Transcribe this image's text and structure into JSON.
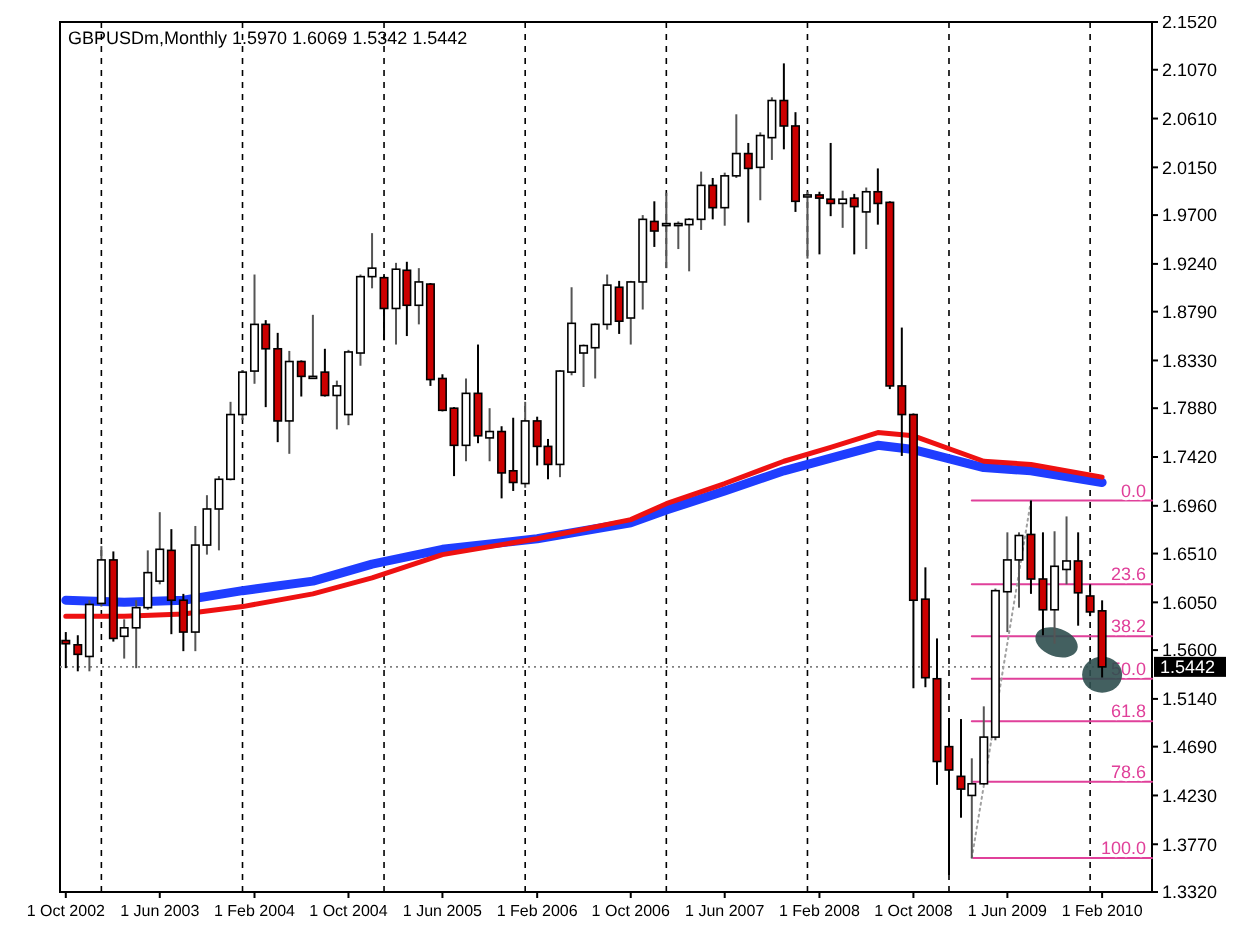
{
  "chart_data": {
    "type": "candlestick",
    "title": "GBPUSDm,Monthly  1.5970 1.6069 1.5342 1.5442",
    "xlim": [
      "2002-09-16",
      "2010-06-10"
    ],
    "xticks": [
      {
        "value": "2002-10",
        "label": "1 Oct 2002"
      },
      {
        "value": "2003-06",
        "label": "1 Jun 2003"
      },
      {
        "value": "2004-02",
        "label": "1 Feb 2004"
      },
      {
        "value": "2004-10",
        "label": "1 Oct 2004"
      },
      {
        "value": "2005-06",
        "label": "1 Jun 2005"
      },
      {
        "value": "2006-02",
        "label": "1 Feb 2006"
      },
      {
        "value": "2006-10",
        "label": "1 Oct 2006"
      },
      {
        "value": "2007-06",
        "label": "1 Jun 2007"
      },
      {
        "value": "2008-02",
        "label": "1 Feb 2008"
      },
      {
        "value": "2008-10",
        "label": "1 Oct 2008"
      },
      {
        "value": "2009-06",
        "label": "1 Jun 2009"
      },
      {
        "value": "2010-02",
        "label": "1 Feb 2010"
      }
    ],
    "ylim": [
      1.332,
      2.152
    ],
    "yticks": [
      {
        "value": 2.152,
        "label": "2.1520"
      },
      {
        "value": 2.107,
        "label": "2.1070"
      },
      {
        "value": 2.061,
        "label": "2.0610"
      },
      {
        "value": 2.015,
        "label": "2.0150"
      },
      {
        "value": 1.97,
        "label": "1.9700"
      },
      {
        "value": 1.924,
        "label": "1.9240"
      },
      {
        "value": 1.879,
        "label": "1.8790"
      },
      {
        "value": 1.833,
        "label": "1.8330"
      },
      {
        "value": 1.788,
        "label": "1.7880"
      },
      {
        "value": 1.742,
        "label": "1.7420"
      },
      {
        "value": 1.696,
        "label": "1.6960"
      },
      {
        "value": 1.651,
        "label": "1.6510"
      },
      {
        "value": 1.605,
        "label": "1.6050"
      },
      {
        "value": 1.56,
        "label": "1.5600"
      },
      {
        "value": 1.514,
        "label": "1.5140"
      },
      {
        "value": 1.469,
        "label": "1.4690"
      },
      {
        "value": 1.423,
        "label": "1.4230"
      },
      {
        "value": 1.377,
        "label": "1.3770"
      },
      {
        "value": 1.332,
        "label": "1.3320"
      }
    ],
    "series": [
      {
        "type": "line",
        "color": "#1f3dff",
        "x": [
          "2002-10",
          "2003-03",
          "2003-08",
          "2004-01",
          "2004-07",
          "2004-12",
          "2005-06",
          "2006-02",
          "2006-10",
          "2007-01",
          "2007-06",
          "2007-11",
          "2008-03",
          "2008-07",
          "2008-10",
          "2009-04",
          "2009-08",
          "2010-02"
        ],
        "values": [
          1.607,
          1.605,
          1.607,
          1.616,
          1.625,
          1.641,
          1.655,
          1.665,
          1.68,
          1.692,
          1.71,
          1.729,
          1.741,
          1.753,
          1.749,
          1.732,
          1.729,
          1.718
        ]
      },
      {
        "type": "line",
        "color": "#ee1111",
        "x": [
          "2002-10",
          "2003-03",
          "2003-08",
          "2004-01",
          "2004-07",
          "2004-12",
          "2005-06",
          "2006-02",
          "2006-10",
          "2007-01",
          "2007-06",
          "2007-11",
          "2008-03",
          "2008-07",
          "2008-10",
          "2009-04",
          "2009-08",
          "2010-02"
        ],
        "values": [
          1.592,
          1.592,
          1.594,
          1.601,
          1.613,
          1.628,
          1.65,
          1.665,
          1.683,
          1.698,
          1.717,
          1.738,
          1.751,
          1.765,
          1.762,
          1.738,
          1.735,
          1.723
        ]
      },
      {
        "type": "line",
        "color": "#e0409a",
        "name": "0.0",
        "x": [
          "2009-03",
          "2010-06-10"
        ],
        "values": [
          1.701,
          1.701
        ]
      },
      {
        "type": "line",
        "color": "#e0409a",
        "name": "23.6",
        "x": [
          "2009-03",
          "2010-06-10"
        ],
        "values": [
          1.622,
          1.622
        ]
      },
      {
        "type": "line",
        "color": "#e0409a",
        "name": "38.2",
        "x": [
          "2009-03",
          "2010-06-10"
        ],
        "values": [
          1.573,
          1.573
        ]
      },
      {
        "type": "line",
        "color": "#e0409a",
        "name": "50.0",
        "x": [
          "2009-03",
          "2010-06-10"
        ],
        "values": [
          1.533,
          1.533
        ]
      },
      {
        "type": "line",
        "color": "#e0409a",
        "name": "61.8",
        "x": [
          "2009-03",
          "2010-06-10"
        ],
        "values": [
          1.493,
          1.493
        ]
      },
      {
        "type": "line",
        "color": "#e0409a",
        "name": "78.6",
        "x": [
          "2009-03",
          "2010-06-10"
        ],
        "values": [
          1.436,
          1.436
        ]
      },
      {
        "type": "line",
        "color": "#e0409a",
        "name": "100.0",
        "x": [
          "2009-03",
          "2010-06-10"
        ],
        "values": [
          1.364,
          1.364
        ]
      },
      {
        "type": "line",
        "color": "#a0a0a0",
        "line_style": "dotted",
        "x": [
          "2009-03",
          "2009-08"
        ],
        "values": [
          1.364,
          1.701
        ]
      },
      {
        "colors": [
          "#cc0000",
          "#cc0000",
          "#ffffff",
          "#ffffff",
          "#cc0000",
          "#ffffff",
          "#ffffff",
          "#ffffff",
          "#ffffff",
          "#cc0000",
          "#cc0000",
          "#ffffff",
          "#ffffff",
          "#ffffff",
          "#ffffff",
          "#ffffff",
          "#ffffff",
          "#cc0000",
          "#cc0000",
          "#ffffff",
          "#cc0000",
          "#ffffff",
          "#cc0000",
          "#ffffff",
          "#ffffff",
          "#ffffff",
          "#ffffff",
          "#cc0000",
          "#ffffff",
          "#cc0000",
          "#ffffff",
          "#cc0000",
          "#cc0000",
          "#cc0000",
          "#ffffff",
          "#cc0000",
          "#ffffff",
          "#cc0000",
          "#cc0000",
          "#ffffff",
          "#cc0000",
          "#cc0000",
          "#ffffff",
          "#ffffff",
          "#ffffff",
          "#ffffff",
          "#ffffff",
          "#cc0000",
          "#ffffff",
          "#ffffff",
          "#cc0000",
          "#ffffff",
          "#ffffff",
          "#ffffff",
          "#ffffff",
          "#cc0000",
          "#ffffff",
          "#ffffff",
          "#cc0000",
          "#ffffff",
          "#ffffff",
          "#cc0000",
          "#cc0000",
          "#ffffff",
          "#cc0000",
          "#cc0000",
          "#ffffff",
          "#cc0000",
          "#ffffff",
          "#cc0000",
          "#cc0000",
          "#cc0000",
          "#cc0000",
          "#cc0000",
          "#cc0000",
          "#cc0000",
          "#cc0000",
          "#ffffff",
          "#ffffff",
          "#ffffff",
          "#ffffff",
          "#ffffff",
          "#cc0000",
          "#cc0000",
          "#ffffff",
          "#ffffff",
          "#cc0000",
          "#cc0000",
          "#cc0000"
        ],
        "x": [
          "2002-10",
          "2002-11",
          "2002-12",
          "2003-01",
          "2003-02",
          "2003-03",
          "2003-04",
          "2003-05",
          "2003-06",
          "2003-07",
          "2003-08",
          "2003-09",
          "2003-10",
          "2003-11",
          "2003-12",
          "2004-01",
          "2004-02",
          "2004-03",
          "2004-04",
          "2004-05",
          "2004-06",
          "2004-07",
          "2004-08",
          "2004-09",
          "2004-10",
          "2004-11",
          "2004-12",
          "2005-01",
          "2005-02",
          "2005-03",
          "2005-04",
          "2005-05",
          "2005-06",
          "2005-07",
          "2005-08",
          "2005-09",
          "2005-10",
          "2005-11",
          "2005-12",
          "2006-01",
          "2006-02",
          "2006-03",
          "2006-04",
          "2006-05",
          "2006-06",
          "2006-07",
          "2006-08",
          "2006-09",
          "2006-10",
          "2006-11",
          "2006-12",
          "2007-01",
          "2007-02",
          "2007-03",
          "2007-04",
          "2007-05",
          "2007-06",
          "2007-07",
          "2007-08",
          "2007-09",
          "2007-10",
          "2007-11",
          "2007-12",
          "2008-01",
          "2008-02",
          "2008-03",
          "2008-04",
          "2008-05",
          "2008-06",
          "2008-07",
          "2008-08",
          "2008-09",
          "2008-10",
          "2008-11",
          "2008-12",
          "2009-01",
          "2009-02",
          "2009-03",
          "2009-04",
          "2009-05",
          "2009-06",
          "2009-07",
          "2009-08",
          "2009-09",
          "2009-10",
          "2009-11",
          "2009-12",
          "2010-01",
          "2010-02"
        ],
        "ohlc": [
          [
            1.569,
            1.577,
            1.543,
            1.566
          ],
          [
            1.565,
            1.574,
            1.54,
            1.556
          ],
          [
            1.554,
            1.607,
            1.54,
            1.603
          ],
          [
            1.604,
            1.658,
            1.601,
            1.645
          ],
          [
            1.645,
            1.653,
            1.568,
            1.571
          ],
          [
            1.573,
            1.589,
            1.552,
            1.581
          ],
          [
            1.581,
            1.607,
            1.543,
            1.6
          ],
          [
            1.6,
            1.654,
            1.598,
            1.633
          ],
          [
            1.625,
            1.69,
            1.622,
            1.655
          ],
          [
            1.654,
            1.674,
            1.575,
            1.607
          ],
          [
            1.607,
            1.613,
            1.559,
            1.577
          ],
          [
            1.577,
            1.677,
            1.559,
            1.659
          ],
          [
            1.659,
            1.706,
            1.65,
            1.693
          ],
          [
            1.693,
            1.724,
            1.654,
            1.721
          ],
          [
            1.721,
            1.794,
            1.72,
            1.782
          ],
          [
            1.782,
            1.824,
            1.777,
            1.822
          ],
          [
            1.823,
            1.914,
            1.811,
            1.867
          ],
          [
            1.867,
            1.871,
            1.789,
            1.844
          ],
          [
            1.844,
            1.859,
            1.756,
            1.776
          ],
          [
            1.776,
            1.842,
            1.745,
            1.832
          ],
          [
            1.832,
            1.833,
            1.799,
            1.818
          ],
          [
            1.817,
            1.876,
            1.817,
            1.818
          ],
          [
            1.822,
            1.844,
            1.799,
            1.8
          ],
          [
            1.8,
            1.814,
            1.768,
            1.809
          ],
          [
            1.782,
            1.843,
            1.772,
            1.841
          ],
          [
            1.84,
            1.914,
            1.828,
            1.912
          ],
          [
            1.912,
            1.953,
            1.901,
            1.92
          ],
          [
            1.911,
            1.913,
            1.852,
            1.882
          ],
          [
            1.882,
            1.925,
            1.848,
            1.919
          ],
          [
            1.918,
            1.926,
            1.856,
            1.885
          ],
          [
            1.885,
            1.92,
            1.867,
            1.907
          ],
          [
            1.905,
            1.906,
            1.809,
            1.815
          ],
          [
            1.816,
            1.82,
            1.785,
            1.786
          ],
          [
            1.788,
            1.789,
            1.724,
            1.753
          ],
          [
            1.753,
            1.816,
            1.738,
            1.802
          ],
          [
            1.802,
            1.848,
            1.755,
            1.762
          ],
          [
            1.76,
            1.788,
            1.738,
            1.766
          ],
          [
            1.766,
            1.771,
            1.703,
            1.727
          ],
          [
            1.729,
            1.779,
            1.71,
            1.718
          ],
          [
            1.717,
            1.794,
            1.713,
            1.776
          ],
          [
            1.776,
            1.78,
            1.734,
            1.752
          ],
          [
            1.752,
            1.759,
            1.721,
            1.735
          ],
          [
            1.735,
            1.824,
            1.723,
            1.823
          ],
          [
            1.822,
            1.902,
            1.819,
            1.868
          ],
          [
            1.84,
            1.848,
            1.808,
            1.847
          ],
          [
            1.845,
            1.868,
            1.816,
            1.867
          ],
          [
            1.867,
            1.914,
            1.862,
            1.904
          ],
          [
            1.902,
            1.908,
            1.858,
            1.87
          ],
          [
            1.873,
            1.908,
            1.848,
            1.907
          ],
          [
            1.907,
            1.97,
            1.881,
            1.966
          ],
          [
            1.964,
            1.983,
            1.94,
            1.955
          ],
          [
            1.961,
            1.991,
            1.92,
            1.962
          ],
          [
            1.961,
            1.964,
            1.938,
            1.962
          ],
          [
            1.961,
            1.967,
            1.917,
            1.966
          ],
          [
            1.966,
            2.011,
            1.956,
            1.998
          ],
          [
            1.998,
            2.005,
            1.966,
            1.977
          ],
          [
            1.977,
            2.01,
            1.96,
            2.007
          ],
          [
            2.007,
            2.065,
            2.005,
            2.028
          ],
          [
            2.028,
            2.038,
            1.963,
            2.014
          ],
          [
            2.015,
            2.048,
            1.984,
            2.045
          ],
          [
            2.043,
            2.081,
            2.022,
            2.078
          ],
          [
            2.078,
            2.113,
            2.032,
            2.054
          ],
          [
            2.054,
            2.067,
            1.973,
            1.983
          ],
          [
            1.988,
            1.992,
            1.929,
            1.989
          ],
          [
            1.989,
            1.992,
            1.933,
            1.986
          ],
          [
            1.985,
            2.038,
            1.969,
            1.981
          ],
          [
            1.981,
            1.993,
            1.958,
            1.985
          ],
          [
            1.986,
            1.99,
            1.933,
            1.978
          ],
          [
            1.973,
            1.996,
            1.938,
            1.992
          ],
          [
            1.992,
            2.014,
            1.961,
            1.981
          ],
          [
            1.982,
            1.983,
            1.806,
            1.809
          ],
          [
            1.809,
            1.864,
            1.743,
            1.782
          ],
          [
            1.782,
            1.783,
            1.524,
            1.607
          ],
          [
            1.608,
            1.638,
            1.525,
            1.534
          ],
          [
            1.533,
            1.571,
            1.433,
            1.455
          ],
          [
            1.469,
            1.496,
            1.348,
            1.447
          ],
          [
            1.441,
            1.495,
            1.402,
            1.429
          ],
          [
            1.423,
            1.458,
            1.364,
            1.434
          ],
          [
            1.434,
            1.507,
            1.433,
            1.478
          ],
          [
            1.478,
            1.618,
            1.475,
            1.616
          ],
          [
            1.615,
            1.671,
            1.577,
            1.645
          ],
          [
            1.645,
            1.671,
            1.6,
            1.668
          ],
          [
            1.669,
            1.701,
            1.613,
            1.627
          ],
          [
            1.627,
            1.671,
            1.574,
            1.598
          ],
          [
            1.598,
            1.672,
            1.566,
            1.639
          ],
          [
            1.636,
            1.686,
            1.622,
            1.644
          ],
          [
            1.644,
            1.671,
            1.583,
            1.614
          ],
          [
            1.611,
            1.622,
            1.592,
            1.596
          ],
          [
            1.597,
            1.6069,
            1.5342,
            1.5442
          ]
        ]
      }
    ],
    "ref_lines": [
      {
        "axis": "x",
        "value": "2003-01",
        "color": "#000000",
        "line_style": "dashed"
      },
      {
        "axis": "x",
        "value": "2004-01",
        "color": "#000000",
        "line_style": "dashed"
      },
      {
        "axis": "x",
        "value": "2005-01",
        "color": "#000000",
        "line_style": "dashed"
      },
      {
        "axis": "x",
        "value": "2006-01",
        "color": "#000000",
        "line_style": "dashed"
      },
      {
        "axis": "x",
        "value": "2007-01",
        "color": "#000000",
        "line_style": "dashed"
      },
      {
        "axis": "x",
        "value": "2008-01",
        "color": "#000000",
        "line_style": "dashed"
      },
      {
        "axis": "x",
        "value": "2009-01",
        "color": "#000000",
        "line_style": "dashed"
      },
      {
        "axis": "x",
        "value": "2010-01",
        "color": "#000000",
        "line_style": "dashed"
      },
      {
        "axis": "y",
        "value": 1.5442,
        "label": "1.5442",
        "color": "#808080",
        "line_style": "dotted"
      }
    ]
  }
}
